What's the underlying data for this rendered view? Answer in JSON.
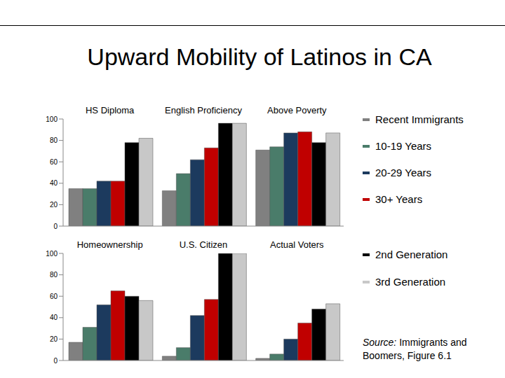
{
  "title": "Upward Mobility of Latinos in CA",
  "source": "Source: Immigrants and Boomers, Figure 6.1",
  "chart_data": [
    {
      "type": "bar",
      "categories": [
        "HS Diploma",
        "English Proficiency",
        "Above Poverty"
      ],
      "series": [
        {
          "name": "Recent Immigrants",
          "color": "#808080",
          "values": [
            35,
            33,
            71
          ]
        },
        {
          "name": "10-19 Years",
          "color": "#4a7c6a",
          "values": [
            35,
            49,
            74
          ]
        },
        {
          "name": "20-29 Years",
          "color": "#1c3a5e",
          "values": [
            42,
            62,
            87
          ]
        },
        {
          "name": "30+ Years",
          "color": "#c00000",
          "values": [
            42,
            73,
            88
          ]
        },
        {
          "name": "2nd Generation",
          "color": "#000000",
          "values": [
            78,
            96,
            78
          ]
        },
        {
          "name": "3rd Generation",
          "color": "#c8c8c8",
          "values": [
            82,
            96,
            87
          ]
        }
      ],
      "ylim": [
        0,
        100
      ],
      "yticks": [
        0,
        20,
        40,
        60,
        80,
        100
      ],
      "grid": false,
      "tick_labels": "y"
    },
    {
      "type": "bar",
      "categories": [
        "Homeownership",
        "U.S. Citizen",
        "Actual Voters"
      ],
      "series": [
        {
          "name": "Recent Immigrants",
          "color": "#808080",
          "values": [
            17,
            4,
            2
          ]
        },
        {
          "name": "10-19 Years",
          "color": "#4a7c6a",
          "values": [
            31,
            12,
            6
          ]
        },
        {
          "name": "20-29 Years",
          "color": "#1c3a5e",
          "values": [
            52,
            42,
            20
          ]
        },
        {
          "name": "30+ Years",
          "color": "#c00000",
          "values": [
            65,
            57,
            35
          ]
        },
        {
          "name": "2nd Generation",
          "color": "#000000",
          "values": [
            60,
            100,
            48
          ]
        },
        {
          "name": "3rd Generation",
          "color": "#c8c8c8",
          "values": [
            56,
            100,
            53
          ]
        }
      ],
      "ylim": [
        0,
        100
      ],
      "yticks": [
        0,
        20,
        40,
        60,
        80,
        100
      ],
      "grid": false,
      "tick_labels": "y"
    }
  ]
}
